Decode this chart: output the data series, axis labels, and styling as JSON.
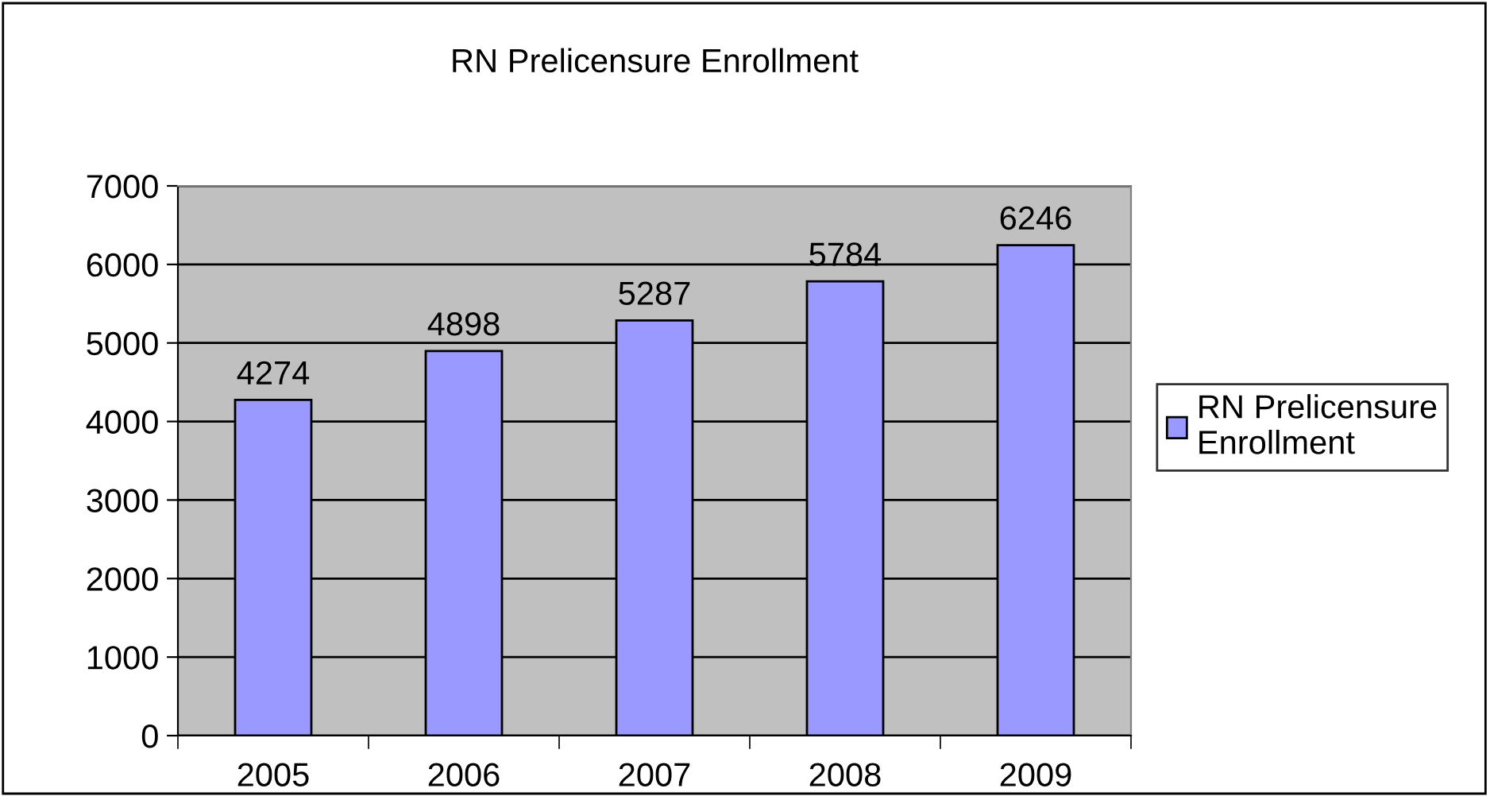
{
  "chart_data": {
    "type": "bar",
    "title": "RN Prelicensure Enrollment",
    "categories": [
      "2005",
      "2006",
      "2007",
      "2008",
      "2009"
    ],
    "series": [
      {
        "name": "RN Prelicensure Enrollment",
        "color": "#9999ff",
        "values": [
          4274,
          4898,
          5287,
          5784,
          6246
        ]
      }
    ],
    "ylim": [
      0,
      7000
    ],
    "yticks": [
      0,
      1000,
      2000,
      3000,
      4000,
      5000,
      6000,
      7000
    ],
    "grid": "y",
    "legend": "right",
    "data_labels": true
  }
}
